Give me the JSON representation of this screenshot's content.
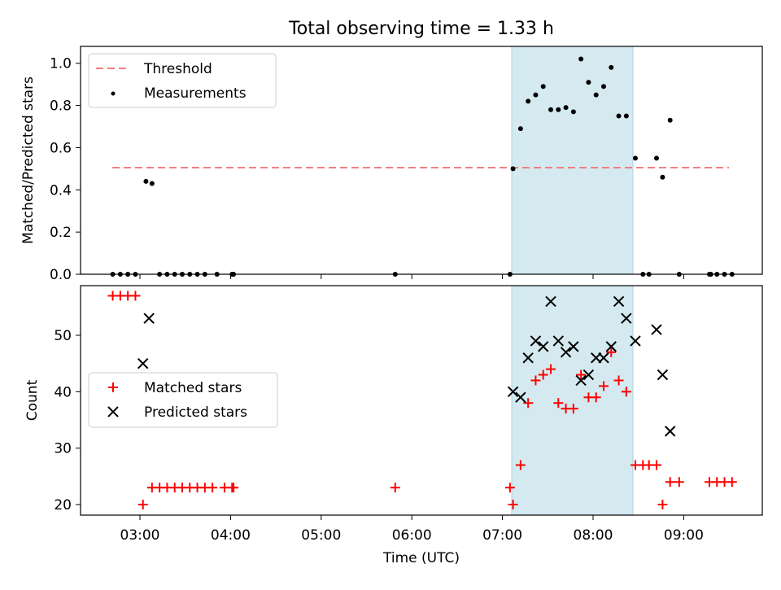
{
  "chart_data": [
    {
      "type": "scatter",
      "title": "Total observing time = 1.33 h",
      "ylabel": "Matched/Predicted stars",
      "xlabel": "",
      "xlim": [
        "02:22",
        "09:54"
      ],
      "ylim": [
        0,
        1.08
      ],
      "yticks": [
        "0.0",
        "0.2",
        "0.4",
        "0.6",
        "0.8",
        "1.0"
      ],
      "xticks": [
        "03:00",
        "04:00",
        "05:00",
        "06:00",
        "07:00",
        "08:00",
        "09:00"
      ],
      "xtick_labels_visible": false,
      "shaded_span": [
        "07:07",
        "08:28"
      ],
      "shaded_color": "#d4eaf0",
      "legend": {
        "placement": "upper-left",
        "entries": [
          "Threshold",
          "Measurements"
        ]
      },
      "threshold": {
        "name": "Threshold",
        "value": 0.5,
        "x_range": [
          "02:43",
          "09:32"
        ],
        "color": "#f08080",
        "style": "dashed"
      },
      "series": [
        {
          "name": "Measurements",
          "marker": "dot",
          "color": "#000000",
          "x": [
            "02:42",
            "02:47",
            "02:52",
            "02:57",
            "03:04",
            "03:08",
            "03:13",
            "03:18",
            "03:23",
            "03:28",
            "03:33",
            "03:38",
            "03:43",
            "03:51",
            "04:01",
            "04:02",
            "05:49",
            "07:05",
            "07:07",
            "07:12",
            "07:17",
            "07:22",
            "07:27",
            "07:32",
            "07:37",
            "07:42",
            "07:47",
            "07:52",
            "07:57",
            "08:02",
            "08:07",
            "08:12",
            "08:17",
            "08:22",
            "08:28",
            "08:33",
            "08:37",
            "08:42",
            "08:46",
            "08:51",
            "08:57",
            "09:17",
            "09:18",
            "09:22",
            "09:27",
            "09:32"
          ],
          "y": [
            0,
            0,
            0,
            0,
            0.44,
            0.43,
            0,
            0,
            0,
            0,
            0,
            0,
            0,
            0,
            0,
            0,
            0,
            0,
            0.5,
            0.69,
            0.82,
            0.85,
            0.89,
            0.78,
            0.78,
            0.79,
            0.77,
            1.02,
            0.91,
            0.85,
            0.89,
            0.98,
            0.75,
            0.75,
            0.55,
            0,
            0,
            0.55,
            0.46,
            0.73,
            0,
            0,
            0,
            0,
            0,
            0
          ]
        }
      ]
    },
    {
      "type": "scatter",
      "title": "",
      "xlabel": "Time (UTC)",
      "ylabel": "Count",
      "xlim": [
        "02:22",
        "09:54"
      ],
      "ylim": [
        18,
        58.5
      ],
      "yticks": [
        "20",
        "30",
        "40",
        "50"
      ],
      "xticks": [
        "03:00",
        "04:00",
        "05:00",
        "06:00",
        "07:00",
        "08:00",
        "09:00"
      ],
      "shaded_span": [
        "07:07",
        "08:28"
      ],
      "shaded_color": "#d4eaf0",
      "legend": {
        "placement": "center-left",
        "entries": [
          "Matched stars",
          "Predicted stars"
        ]
      },
      "series": [
        {
          "name": "Matched stars",
          "marker": "plus",
          "color": "#ff0000",
          "x": [
            "02:42",
            "02:47",
            "02:52",
            "02:57",
            "03:02",
            "03:08",
            "03:13",
            "03:18",
            "03:23",
            "03:28",
            "03:33",
            "03:38",
            "03:43",
            "03:48",
            "03:56",
            "04:01",
            "04:02",
            "05:49",
            "07:05",
            "07:07",
            "07:12",
            "07:17",
            "07:22",
            "07:27",
            "07:32",
            "07:37",
            "07:42",
            "07:47",
            "07:52",
            "07:57",
            "08:02",
            "08:07",
            "08:12",
            "08:17",
            "08:22",
            "08:28",
            "08:33",
            "08:37",
            "08:42",
            "08:46",
            "08:51",
            "08:57",
            "09:17",
            "09:22",
            "09:27",
            "09:32"
          ],
          "y": [
            57,
            57,
            57,
            57,
            20,
            23,
            23,
            23,
            23,
            23,
            23,
            23,
            23,
            23,
            23,
            23,
            23,
            23,
            23,
            20,
            27,
            38,
            42,
            43,
            44,
            38,
            37,
            37,
            43,
            39,
            39,
            41,
            47,
            42,
            40,
            27,
            27,
            27,
            27,
            20,
            24,
            24,
            24,
            24,
            24,
            24
          ]
        },
        {
          "name": "Predicted stars",
          "marker": "x",
          "color": "#000000",
          "x": [
            "03:02",
            "03:06",
            "07:07",
            "07:12",
            "07:17",
            "07:22",
            "07:27",
            "07:32",
            "07:37",
            "07:42",
            "07:47",
            "07:52",
            "07:57",
            "08:02",
            "08:07",
            "08:12",
            "08:17",
            "08:22",
            "08:28",
            "08:42",
            "08:46",
            "08:51"
          ],
          "y": [
            45,
            53,
            40,
            39,
            46,
            49,
            48,
            56,
            49,
            47,
            48,
            42,
            43,
            46,
            46,
            48,
            56,
            53,
            49,
            51,
            43,
            33
          ]
        }
      ]
    }
  ]
}
